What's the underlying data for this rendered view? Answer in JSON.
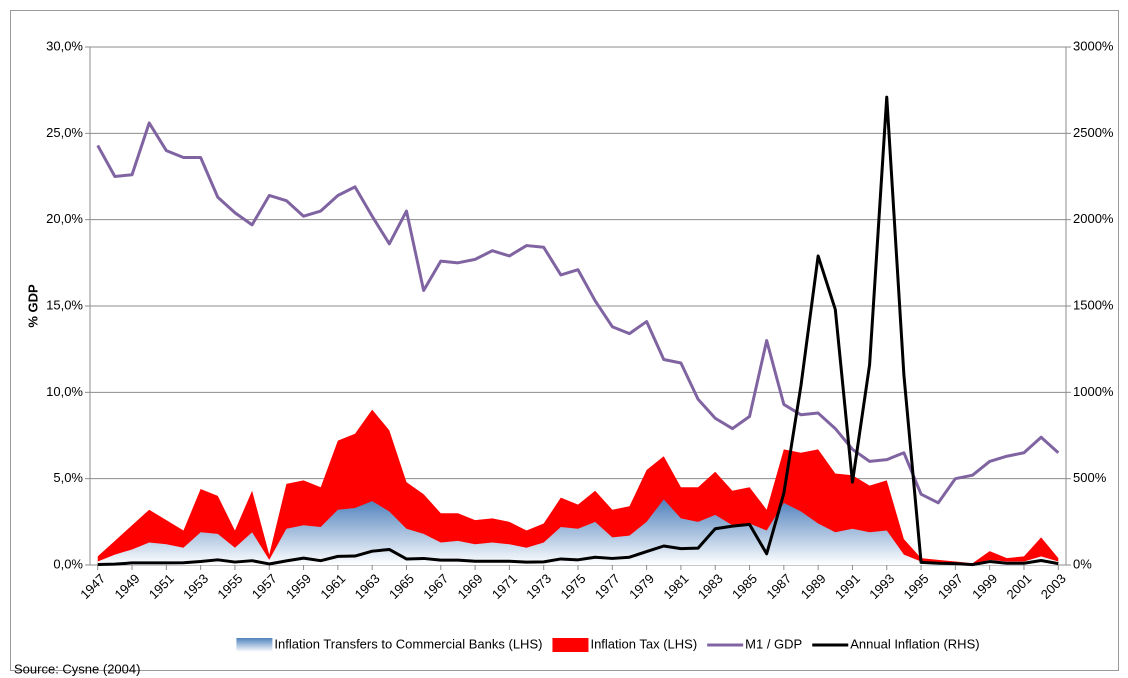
{
  "chart_data": {
    "type": "combo",
    "ylabel": "% GDP",
    "source": "Source: Cysne (2004)",
    "x": [
      1947,
      1948,
      1949,
      1950,
      1951,
      1952,
      1953,
      1954,
      1955,
      1956,
      1957,
      1958,
      1959,
      1960,
      1961,
      1962,
      1963,
      1964,
      1965,
      1966,
      1967,
      1968,
      1969,
      1970,
      1971,
      1972,
      1973,
      1974,
      1975,
      1976,
      1977,
      1978,
      1979,
      1980,
      1981,
      1982,
      1983,
      1984,
      1985,
      1986,
      1987,
      1988,
      1989,
      1990,
      1991,
      1992,
      1993,
      1994,
      1995,
      1996,
      1997,
      1998,
      1999,
      2000,
      2001,
      2002,
      2003
    ],
    "xlim": [
      1946.55,
      2003.45
    ],
    "xticks": [
      1947,
      1949,
      1951,
      1953,
      1955,
      1957,
      1959,
      1961,
      1963,
      1965,
      1967,
      1969,
      1971,
      1973,
      1975,
      1977,
      1979,
      1981,
      1983,
      1985,
      1987,
      1989,
      1991,
      1993,
      1995,
      1997,
      1999,
      2001,
      2003
    ],
    "ylim": [
      0,
      30
    ],
    "yticks": [
      {
        "value": 0,
        "label": "0,0%"
      },
      {
        "value": 5,
        "label": "5,0%"
      },
      {
        "value": 10,
        "label": "10,0%"
      },
      {
        "value": 15,
        "label": "15,0%"
      },
      {
        "value": 20,
        "label": "20,0%"
      },
      {
        "value": 25,
        "label": "25,0%"
      },
      {
        "value": 30,
        "label": "30,0%"
      }
    ],
    "y2lim": [
      0,
      3000
    ],
    "y2ticks": [
      {
        "value": 0,
        "label": "0%"
      },
      {
        "value": 500,
        "label": "500%"
      },
      {
        "value": 1000,
        "label": "1000%"
      },
      {
        "value": 1500,
        "label": "1500%"
      },
      {
        "value": 2000,
        "label": "2000%"
      },
      {
        "value": 2500,
        "label": "2500%"
      },
      {
        "value": 3000,
        "label": "3000%"
      }
    ],
    "grid": true,
    "legend": "bottom",
    "series": [
      {
        "name": "Inflation Transfers to Commercial Banks (LHS)",
        "type": "area",
        "color": "#4f81bd",
        "values": [
          0.2,
          0.6,
          0.9,
          1.3,
          1.2,
          1.0,
          1.9,
          1.8,
          1.0,
          1.9,
          0.3,
          2.1,
          2.3,
          2.2,
          3.2,
          3.3,
          3.7,
          3.1,
          2.1,
          1.8,
          1.3,
          1.4,
          1.2,
          1.3,
          1.2,
          1.0,
          1.3,
          2.2,
          2.1,
          2.5,
          1.6,
          1.7,
          2.5,
          3.8,
          2.7,
          2.5,
          2.9,
          2.3,
          2.4,
          2.0,
          3.6,
          3.1,
          2.4,
          1.9,
          2.1,
          1.9,
          2.0,
          0.6,
          0.2,
          0.1,
          0.1,
          0.05,
          0.3,
          0.2,
          0.2,
          0.5,
          0.2
        ]
      },
      {
        "name": "Inflation Tax (LHS)",
        "type": "area",
        "color": "#ff0000",
        "values": [
          0.5,
          1.4,
          2.3,
          3.2,
          2.6,
          2.0,
          4.4,
          4.0,
          2.0,
          4.3,
          0.6,
          4.7,
          4.9,
          4.5,
          7.2,
          7.6,
          9.0,
          7.8,
          4.8,
          4.1,
          3.0,
          3.0,
          2.6,
          2.7,
          2.5,
          2.0,
          2.4,
          3.9,
          3.5,
          4.3,
          3.2,
          3.4,
          5.5,
          6.3,
          4.5,
          4.5,
          5.4,
          4.3,
          4.5,
          3.2,
          6.7,
          6.5,
          6.7,
          5.3,
          5.2,
          4.6,
          4.9,
          1.5,
          0.4,
          0.3,
          0.2,
          0.1,
          0.8,
          0.4,
          0.5,
          1.6,
          0.4
        ]
      },
      {
        "name": "M1 / GDP",
        "type": "line",
        "color": "#8064a2",
        "values": [
          24.3,
          22.5,
          22.6,
          25.6,
          24.0,
          23.6,
          23.6,
          21.3,
          20.4,
          19.7,
          21.4,
          21.1,
          20.2,
          20.5,
          21.4,
          21.9,
          20.2,
          18.6,
          20.5,
          15.9,
          17.6,
          17.5,
          17.7,
          18.2,
          17.9,
          18.5,
          18.4,
          16.8,
          17.1,
          15.3,
          13.8,
          13.4,
          14.1,
          11.9,
          11.7,
          9.6,
          8.5,
          7.9,
          8.6,
          13.0,
          9.3,
          8.7,
          8.8,
          7.9,
          6.7,
          6.0,
          6.1,
          6.5,
          4.1,
          3.6,
          5.0,
          5.2,
          6.0,
          6.3,
          6.5,
          7.4,
          6.5
        ]
      },
      {
        "name": "Annual Inflation (RHS)",
        "type": "line",
        "axis": "y2",
        "color": "#000000",
        "values": [
          3,
          5,
          12,
          12,
          12,
          13,
          20,
          30,
          17,
          25,
          6,
          24,
          40,
          25,
          50,
          52,
          80,
          90,
          35,
          38,
          28,
          28,
          22,
          22,
          22,
          17,
          18,
          35,
          30,
          45,
          38,
          45,
          78,
          110,
          95,
          98,
          210,
          225,
          235,
          65,
          415,
          1040,
          1790,
          1480,
          480,
          1160,
          2710,
          1100,
          15,
          10,
          8,
          2,
          20,
          10,
          10,
          26,
          8
        ]
      }
    ]
  }
}
